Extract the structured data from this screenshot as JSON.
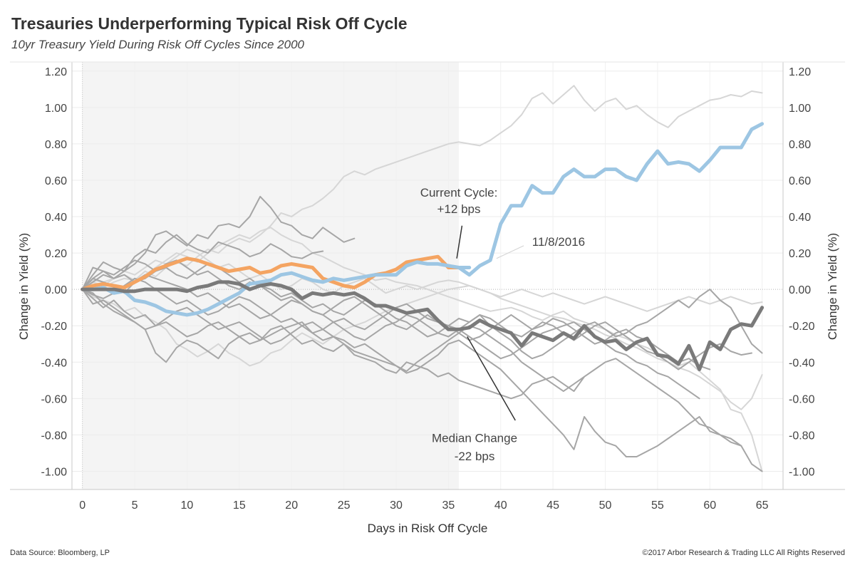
{
  "header": {
    "title": "Tresauries Underperforming Typical Risk Off Cycle",
    "subtitle": "10yr Treasury Yield During Risk Off Cycles Since 2000"
  },
  "footer": {
    "source": "Data Source: Bloomberg, LP",
    "copyright": "©2017 Arbor Research & Trading LLC  All Rights Reserved"
  },
  "colors": {
    "current": "#9dc6e3",
    "past": "#f4a462",
    "median": "#7a7a7a",
    "history_dark": "#a6a6a6",
    "history_light": "#d6d6d6",
    "shade": "#f4f4f4"
  },
  "chart_data": {
    "type": "line",
    "title": "Tresauries Underperforming Typical Risk Off Cycle",
    "subtitle": "10yr Treasury Yield During Risk Off Cycles Since 2000",
    "xlabel": "Days in Risk Off Cycle",
    "ylabel": "Change in Yield (%)",
    "ylabel_right": "Change in Yield (%)",
    "xlim": [
      -1,
      67
    ],
    "ylim": [
      -1.1,
      1.25
    ],
    "x_ticks": [
      0,
      5,
      10,
      15,
      20,
      25,
      30,
      35,
      40,
      45,
      50,
      55,
      60,
      65
    ],
    "y_ticks": [
      "1.20",
      "1.00",
      "0.80",
      "0.60",
      "0.40",
      "0.20",
      "0.00",
      "-0.20",
      "-0.40",
      "-0.60",
      "-0.80",
      "-1.00"
    ],
    "y_tick_values": [
      1.2,
      1.0,
      0.8,
      0.6,
      0.4,
      0.2,
      0.0,
      -0.2,
      -0.4,
      -0.6,
      -0.8,
      -1.0
    ],
    "grid": true,
    "shaded_region_x": [
      0,
      36
    ],
    "series": [
      {
        "role": "current",
        "start": 36,
        "values": [
          0.12,
          0.08,
          0.13,
          0.16,
          0.36,
          0.46,
          0.46,
          0.57,
          0.53,
          0.53,
          0.62,
          0.66,
          0.62,
          0.62,
          0.66,
          0.66,
          0.62,
          0.6,
          0.69,
          0.76,
          0.69,
          0.7,
          0.69,
          0.65,
          0.71,
          0.78,
          0.78,
          0.78,
          0.88,
          0.91
        ]
      },
      {
        "role": "current",
        "start": 0,
        "values": [
          0.0,
          0.0,
          0.01,
          -0.02,
          -0.01,
          -0.06,
          -0.07,
          -0.09,
          -0.12,
          -0.13,
          -0.14,
          -0.13,
          -0.11,
          -0.08,
          -0.05,
          -0.02,
          0.03,
          0.04,
          0.05,
          0.08,
          0.09,
          0.07,
          0.05,
          0.04,
          0.06,
          0.05,
          0.06,
          0.07,
          0.08,
          0.08,
          0.08,
          0.13,
          0.15,
          0.14,
          0.14,
          0.13,
          0.12,
          0.12
        ]
      },
      {
        "role": "past",
        "start": 0,
        "values": [
          0.0,
          0.02,
          0.03,
          0.02,
          0.01,
          0.04,
          0.07,
          0.11,
          0.13,
          0.15,
          0.17,
          0.16,
          0.14,
          0.12,
          0.1,
          0.11,
          0.12,
          0.09,
          0.1,
          0.13,
          0.14,
          0.13,
          0.12,
          0.06,
          0.04,
          0.02,
          0.01,
          0.04,
          0.08,
          0.09,
          0.11,
          0.15,
          0.16,
          0.17,
          0.18,
          0.12,
          0.12
        ]
      },
      {
        "role": "median",
        "start": 0,
        "values": [
          0.0,
          0.0,
          0.0,
          0.0,
          -0.01,
          -0.01,
          0.0,
          0.0,
          0.0,
          0.0,
          -0.01,
          0.01,
          0.02,
          0.04,
          0.04,
          0.03,
          0.0,
          0.02,
          0.03,
          0.02,
          0.0,
          -0.05,
          -0.02,
          -0.03,
          -0.02,
          -0.03,
          -0.02,
          -0.05,
          -0.09,
          -0.09,
          -0.11,
          -0.13,
          -0.12,
          -0.11,
          -0.17,
          -0.22,
          -0.22,
          -0.21,
          -0.17,
          -0.2,
          -0.22,
          -0.24,
          -0.31,
          -0.24,
          -0.26,
          -0.28,
          -0.24,
          -0.27,
          -0.2,
          -0.26,
          -0.29,
          -0.28,
          -0.33,
          -0.29,
          -0.27,
          -0.36,
          -0.37,
          -0.41,
          -0.31,
          -0.44,
          -0.29,
          -0.33,
          -0.22,
          -0.19,
          -0.2,
          -0.1
        ]
      },
      {
        "role": "history_light",
        "start": 0,
        "values": [
          0.0,
          0.05,
          0.04,
          0.06,
          0.08,
          0.05,
          0.1,
          0.07,
          0.12,
          0.15,
          0.13,
          0.18,
          0.22,
          0.2,
          0.25,
          0.28,
          0.26,
          0.3,
          0.35,
          0.42,
          0.4,
          0.44,
          0.46,
          0.5,
          0.55,
          0.62,
          0.65,
          0.63,
          0.66,
          0.68,
          0.7,
          0.72,
          0.74,
          0.76,
          0.78,
          0.8,
          0.81,
          0.8,
          0.79,
          0.82,
          0.86,
          0.9,
          0.96,
          1.05,
          1.08,
          1.02,
          1.07,
          1.12,
          1.04,
          0.98,
          1.03,
          1.05,
          0.99,
          1.01,
          0.96,
          0.92,
          0.89,
          0.95,
          0.98,
          1.01,
          1.04,
          1.05,
          1.07,
          1.06,
          1.09,
          1.08
        ]
      },
      {
        "role": "history_light",
        "start": 0,
        "values": [
          0.0,
          -0.04,
          -0.06,
          -0.08,
          -0.12,
          -0.1,
          -0.15,
          -0.18,
          -0.22,
          -0.3,
          -0.33,
          -0.37,
          -0.34,
          -0.3,
          -0.35,
          -0.38,
          -0.42,
          -0.4,
          -0.35,
          -0.33,
          -0.28,
          -0.24,
          -0.27,
          -0.3,
          -0.26,
          -0.22,
          -0.2,
          -0.18,
          -0.15,
          -0.12,
          -0.1,
          -0.08,
          -0.06,
          -0.04,
          -0.02,
          0.0,
          0.01,
          0.02,
          0.0,
          -0.02,
          -0.05,
          -0.07,
          -0.09,
          -0.11,
          -0.13,
          -0.15,
          -0.16,
          -0.18,
          -0.2,
          -0.22,
          -0.25,
          -0.27,
          -0.3,
          -0.32,
          -0.35,
          -0.38,
          -0.4,
          -0.43,
          -0.45,
          -0.48,
          -0.52,
          -0.56,
          -0.62,
          -0.66,
          -0.6,
          -0.47
        ]
      },
      {
        "role": "history_light",
        "start": 0,
        "values": [
          0.0,
          0.02,
          0.01,
          0.04,
          0.06,
          0.05,
          0.08,
          0.12,
          0.16,
          0.2,
          0.18,
          0.15,
          0.2,
          0.24,
          0.27,
          0.3,
          0.28,
          0.32,
          0.34,
          0.3,
          0.27,
          0.25,
          0.2,
          0.18,
          0.15,
          0.12,
          0.1,
          0.08,
          0.05,
          0.06,
          0.04,
          0.03,
          0.02,
          0.0,
          -0.02,
          -0.04,
          -0.06,
          -0.08,
          -0.1,
          -0.12,
          -0.11,
          -0.1,
          -0.12,
          -0.15,
          -0.17,
          -0.14,
          -0.12,
          -0.16,
          -0.18,
          -0.2,
          -0.22,
          -0.25,
          -0.27,
          -0.3,
          -0.32,
          -0.35,
          -0.38,
          -0.42,
          -0.4,
          -0.45,
          -0.5,
          -0.55,
          -0.66,
          -0.68,
          -0.8,
          -1.0
        ]
      },
      {
        "role": "history_dark",
        "start": 0,
        "values": [
          0.0,
          0.04,
          0.08,
          0.06,
          0.1,
          0.14,
          0.2,
          0.3,
          0.32,
          0.28,
          0.24,
          0.3,
          0.28,
          0.35,
          0.36,
          0.34,
          0.4,
          0.51,
          0.45,
          0.37,
          0.35,
          0.3,
          0.28,
          0.34,
          0.3,
          0.26,
          0.28
        ]
      },
      {
        "role": "history_dark",
        "start": 0,
        "values": [
          0.0,
          0.08,
          0.15,
          0.12,
          0.1,
          0.18,
          0.22,
          0.2,
          0.26,
          0.3,
          0.25,
          0.22,
          0.2,
          0.26,
          0.24,
          0.22,
          0.18,
          0.2,
          0.25,
          0.22,
          0.18,
          0.17,
          0.2,
          0.21
        ]
      },
      {
        "role": "history_dark",
        "start": 0,
        "values": [
          0.0,
          -0.02,
          -0.08,
          -0.12,
          -0.15,
          -0.18,
          -0.22,
          -0.35,
          -0.4,
          -0.32,
          -0.28,
          -0.3,
          -0.34,
          -0.38,
          -0.3,
          -0.26,
          -0.24,
          -0.28,
          -0.22,
          -0.2,
          -0.25,
          -0.3,
          -0.28,
          -0.32,
          -0.34,
          -0.3,
          -0.36,
          -0.38,
          -0.4,
          -0.44,
          -0.46,
          -0.4,
          -0.42,
          -0.44,
          -0.48,
          -0.46,
          -0.5,
          -0.52,
          -0.54,
          -0.56,
          -0.58,
          -0.6,
          -0.58,
          -0.52,
          -0.5,
          -0.48,
          -0.52,
          -0.56,
          -0.48
        ]
      },
      {
        "role": "history_dark",
        "start": 0,
        "values": [
          0.0,
          -0.05,
          -0.1,
          -0.06,
          -0.12,
          -0.16,
          -0.14,
          -0.2,
          -0.18,
          -0.22,
          -0.26,
          -0.24,
          -0.2,
          -0.18,
          -0.22,
          -0.26,
          -0.3,
          -0.28,
          -0.25,
          -0.22,
          -0.2,
          -0.18,
          -0.24,
          -0.28,
          -0.26,
          -0.3,
          -0.34,
          -0.36,
          -0.38,
          -0.4,
          -0.42,
          -0.46,
          -0.44,
          -0.4,
          -0.36,
          -0.3,
          -0.28,
          -0.32,
          -0.36,
          -0.4,
          -0.44,
          -0.5,
          -0.56,
          -0.62,
          -0.68,
          -0.74,
          -0.8,
          -0.88,
          -0.7,
          -0.78,
          -0.84,
          -0.86,
          -0.92,
          -0.92,
          -0.89,
          -0.86,
          -0.82,
          -0.78,
          -0.74,
          -0.7,
          -0.78,
          -0.8,
          -0.84,
          -0.86,
          -0.96,
          -1.0
        ]
      },
      {
        "role": "history_dark",
        "start": 0,
        "values": [
          0.0,
          0.06,
          0.04,
          0.02,
          -0.02,
          0.04,
          0.08,
          0.06,
          0.04,
          0.02,
          0.0,
          -0.04,
          -0.02,
          -0.06,
          -0.1,
          -0.08,
          -0.12,
          -0.16,
          -0.14,
          -0.1,
          -0.06,
          -0.08,
          -0.12,
          -0.14,
          -0.18,
          -0.16,
          -0.2,
          -0.22,
          -0.18,
          -0.14,
          -0.1,
          -0.08,
          -0.12,
          -0.16,
          -0.18,
          -0.2,
          -0.16,
          -0.18,
          -0.14,
          -0.2,
          -0.24,
          -0.28,
          -0.34,
          -0.38,
          -0.36,
          -0.32,
          -0.28,
          -0.24,
          -0.2,
          -0.18,
          -0.22,
          -0.26,
          -0.24,
          -0.2,
          -0.18,
          -0.14,
          -0.1,
          -0.06,
          -0.1,
          -0.04,
          0.0,
          -0.06,
          -0.1,
          -0.2,
          -0.3,
          -0.35
        ]
      },
      {
        "role": "history_dark",
        "start": 0,
        "values": [
          0.0,
          -0.08,
          -0.06,
          -0.1,
          -0.14,
          -0.18,
          -0.22,
          -0.2,
          -0.16,
          -0.12,
          -0.1,
          -0.14,
          -0.18,
          -0.22,
          -0.2,
          -0.18,
          -0.22,
          -0.26,
          -0.3,
          -0.28,
          -0.24,
          -0.2,
          -0.18,
          -0.22,
          -0.26,
          -0.28,
          -0.32,
          -0.3,
          -0.34,
          -0.38,
          -0.42,
          -0.45,
          -0.4,
          -0.36,
          -0.32,
          -0.28,
          -0.24,
          -0.2,
          -0.22,
          -0.26,
          -0.3,
          -0.34,
          -0.4,
          -0.44,
          -0.48,
          -0.52,
          -0.56,
          -0.52,
          -0.48,
          -0.44,
          -0.4,
          -0.38,
          -0.42,
          -0.46,
          -0.5,
          -0.54,
          -0.58,
          -0.62,
          -0.68,
          -0.74,
          -0.76,
          -0.8,
          -0.82,
          -0.86
        ]
      },
      {
        "role": "history_dark",
        "start": 0,
        "values": [
          0.0,
          0.12,
          0.1,
          0.06,
          0.08,
          0.04,
          0.06,
          0.1,
          0.14,
          0.16,
          0.12,
          0.08,
          0.1,
          0.06,
          0.02,
          0.0,
          0.04,
          0.02,
          -0.02,
          -0.06,
          -0.04,
          -0.08,
          -0.12,
          -0.14,
          -0.1,
          -0.06,
          -0.04,
          -0.08,
          -0.12,
          -0.16,
          -0.2,
          -0.22,
          -0.18,
          -0.14,
          -0.18,
          -0.2,
          -0.24,
          -0.28,
          -0.26,
          -0.22,
          -0.18,
          -0.14,
          -0.18,
          -0.22,
          -0.2,
          -0.16,
          -0.18,
          -0.22,
          -0.26,
          -0.3,
          -0.28,
          -0.24,
          -0.22,
          -0.26,
          -0.28,
          -0.32,
          -0.36,
          -0.4,
          -0.38,
          -0.42,
          -0.44
        ]
      },
      {
        "role": "history_dark",
        "start": 0,
        "values": [
          0.0,
          0.06,
          0.1,
          0.08,
          0.12,
          0.16,
          0.14,
          0.1,
          0.12,
          0.08,
          0.06,
          0.1,
          0.14,
          0.12,
          0.08,
          0.04,
          0.06,
          0.02,
          0.0,
          -0.04,
          -0.02,
          -0.06,
          -0.1,
          -0.08,
          -0.12,
          -0.14,
          -0.1,
          -0.06,
          -0.08,
          -0.12,
          -0.16,
          -0.18,
          -0.22,
          -0.26,
          -0.24,
          -0.2,
          -0.22,
          -0.26,
          -0.3,
          -0.34,
          -0.38,
          -0.36,
          -0.32,
          -0.28,
          -0.24,
          -0.22,
          -0.2,
          -0.18,
          -0.22,
          -0.26,
          -0.3,
          -0.34,
          -0.36,
          -0.4,
          -0.42,
          -0.46,
          -0.48,
          -0.52,
          -0.56,
          -0.6
        ]
      },
      {
        "role": "history_dark",
        "start": 0,
        "values": [
          0.0,
          -0.03,
          -0.05,
          -0.02,
          0.02,
          0.06,
          0.04,
          0.0,
          -0.04,
          -0.08,
          -0.06,
          -0.1,
          -0.14,
          -0.12,
          -0.08,
          -0.04,
          -0.06,
          -0.1,
          -0.14,
          -0.18,
          -0.16,
          -0.2,
          -0.24,
          -0.22,
          -0.18,
          -0.22,
          -0.26,
          -0.28,
          -0.24,
          -0.2,
          -0.18,
          -0.14,
          -0.16,
          -0.2,
          -0.24,
          -0.26,
          -0.22,
          -0.18,
          -0.14,
          -0.16,
          -0.2,
          -0.24,
          -0.26,
          -0.22,
          -0.18,
          -0.2,
          -0.24,
          -0.28,
          -0.24,
          -0.2,
          -0.18,
          -0.22,
          -0.26,
          -0.3,
          -0.34,
          -0.36,
          -0.4,
          -0.44,
          -0.4,
          -0.36,
          -0.32,
          -0.3,
          -0.34,
          -0.36,
          -0.35
        ]
      },
      {
        "role": "history_light",
        "start": 0,
        "values": [
          0.0,
          0.04,
          0.02,
          0.06,
          0.1,
          0.08,
          0.12,
          0.16,
          0.14,
          0.18,
          0.22,
          0.2,
          0.16,
          0.12,
          0.14,
          0.1,
          0.06,
          0.08,
          0.04,
          0.0,
          0.02,
          0.06,
          0.04,
          0.0,
          -0.02,
          0.02,
          0.04,
          0.06,
          0.02,
          -0.02,
          0.0,
          0.02,
          0.0,
          0.02,
          0.04,
          0.05,
          0.04,
          0.02,
          0.0,
          -0.02,
          -0.04,
          -0.02,
          0.0,
          -0.02,
          -0.04,
          -0.02,
          -0.04,
          -0.06,
          -0.08,
          -0.06,
          -0.04,
          -0.06,
          -0.08,
          -0.1,
          -0.12,
          -0.1,
          -0.08,
          -0.06,
          -0.04,
          -0.06,
          -0.08,
          -0.06,
          -0.04,
          -0.06,
          -0.08,
          -0.07
        ]
      }
    ],
    "annotations": [
      {
        "text": "Current Cycle:",
        "x": 36,
        "y": 0.51
      },
      {
        "text": "+12 bps",
        "x": 36,
        "y": 0.42
      },
      {
        "text": "11/8/2016",
        "x": 43,
        "y": 0.24
      },
      {
        "text": "Median Change",
        "x": 37.5,
        "y": -0.84
      },
      {
        "text": "-22 bps",
        "x": 37.5,
        "y": -0.94
      }
    ]
  }
}
